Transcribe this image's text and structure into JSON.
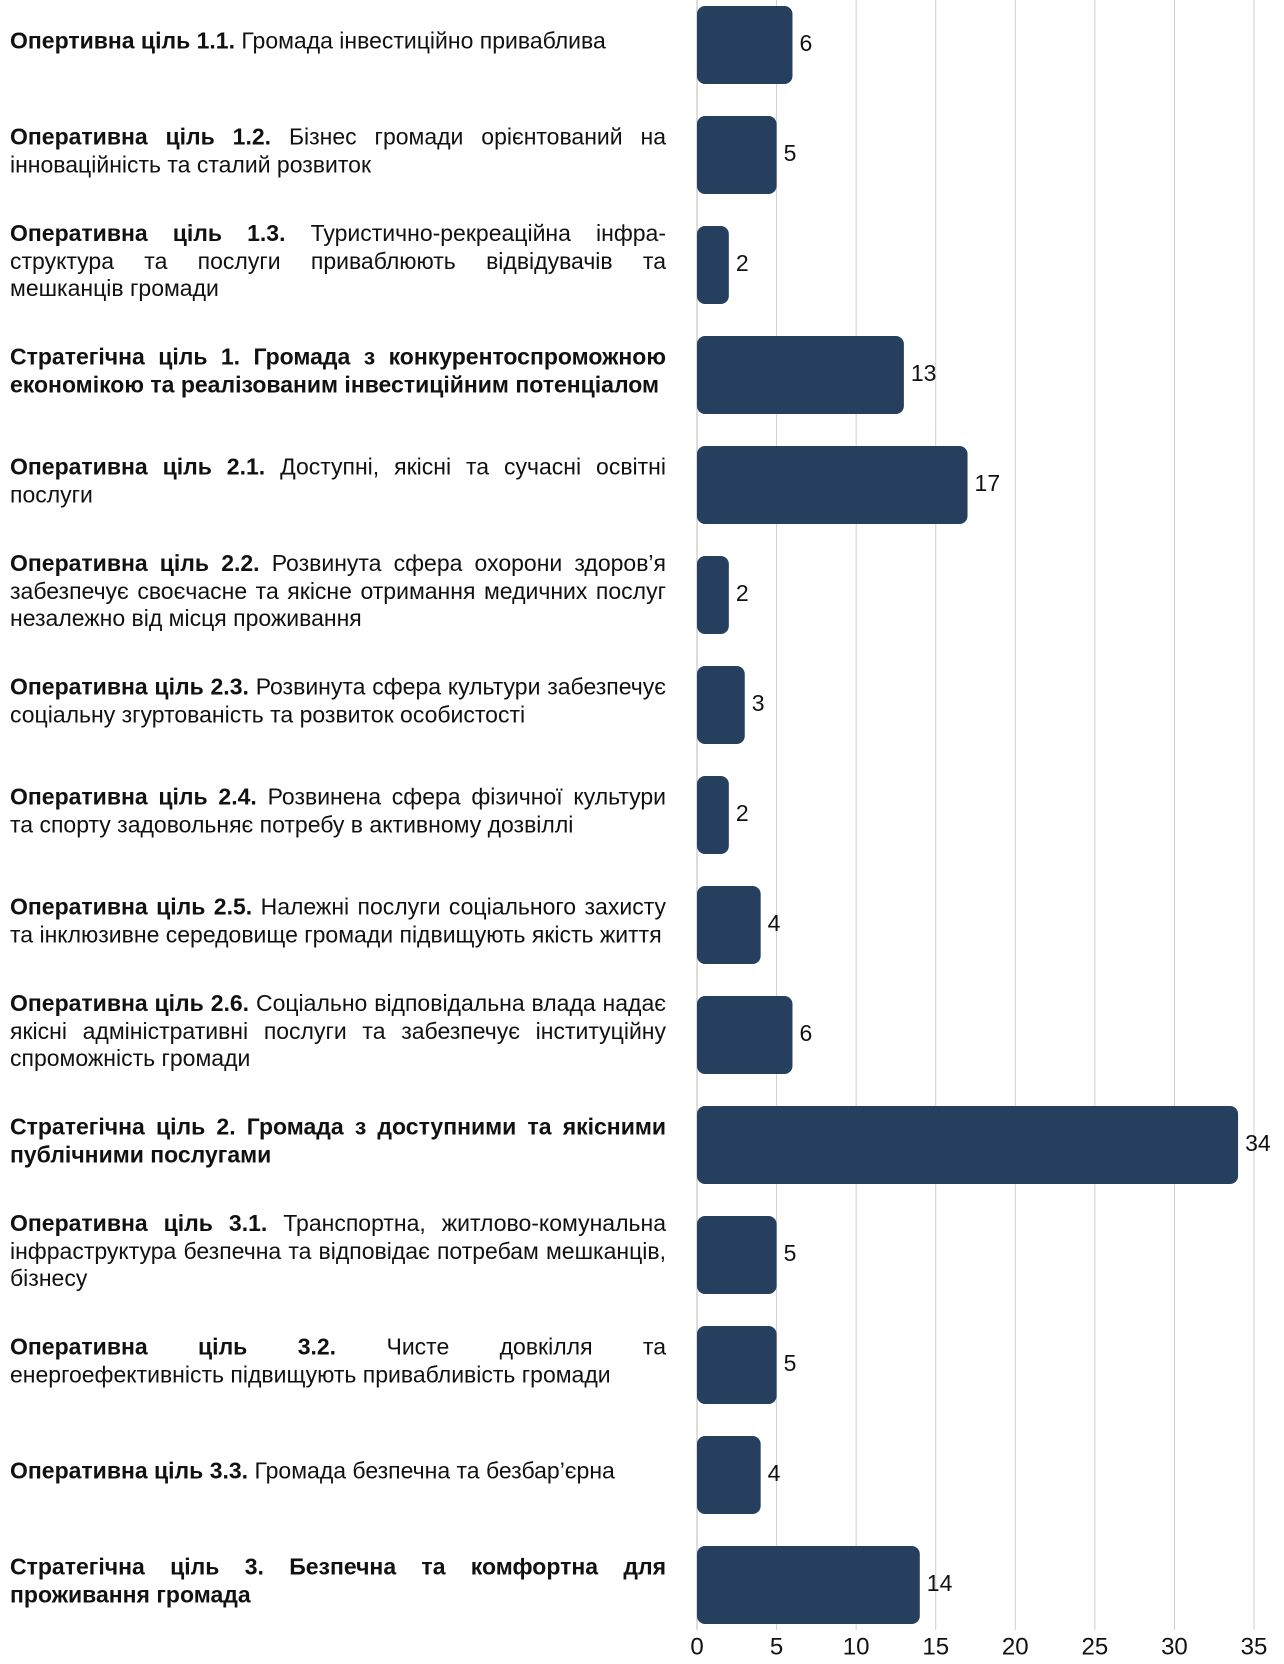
{
  "chart_data": {
    "type": "bar",
    "orientation": "horizontal",
    "categories": [
      {
        "label": "Опертивна ціль 1.1.",
        "text": "Громада інвестиційно приваблива"
      },
      {
        "label": "Оперативна ціль 1.2.",
        "text": "Бізнес громади орієнтований на інноваційність та сталий розвиток"
      },
      {
        "label": "Оперативна ціль 1.3.",
        "text": "Туристично-рекреаційна інфра-структура та послуги приваблюють відвідувачів та мешканців громади"
      },
      {
        "label": "Стратегічна ціль 1. Громада з конкурентоспроможною економікою та реалізованим інвестиційним потенціалом"
      },
      {
        "label": "Оперативна ціль 2.1.",
        "text": "Доступні, якісні та сучасні освітні послуги"
      },
      {
        "label": "Оперативна ціль 2.2.",
        "text": "Розвинута сфера охорони здоров’я забезпечує своєчасне та якісне отримання медичних послуг незалежно від місця проживання"
      },
      {
        "label": "Оперативна ціль 2.3.",
        "text": "Розвинута сфера культури забезпечує соціальну згуртованість та розвиток особистості"
      },
      {
        "label": "Оперативна ціль 2.4.",
        "text": "Розвинена сфера фізичної культури та спорту задовольняє потребу в активному дозвіллі"
      },
      {
        "label": "Оперативна ціль 2.5.",
        "text": "Належні послуги соціального захисту та інклюзивне середовище громади підвищують якість життя"
      },
      {
        "label": "Оперативна ціль 2.6.",
        "text": "Соціально відповідальна влада надає якісні адміністративні послуги та забезпечує інституційну спроможність громади"
      },
      {
        "label": "Стратегічна ціль 2. Громада з доступними та якісними публічними послугами"
      },
      {
        "label": "Оперативна ціль 3.1.",
        "text": "Транспортна, житлово-комунальна інфраструктура безпечна та відповідає потребам мешканців, бізнесу"
      },
      {
        "label": "Оперативна ціль 3.2.",
        "text": "Чисте довкілля та енергоефективність підвищують привабливість громади"
      },
      {
        "label": "Оперативна ціль 3.3.",
        "text": "Громада безпечна та безбар’єрна"
      },
      {
        "label": "Стратегічна ціль 3. Безпечна та комфортна для проживання громада"
      }
    ],
    "values": [
      6,
      5,
      2,
      13,
      17,
      2,
      3,
      2,
      4,
      6,
      34,
      5,
      5,
      4,
      14
    ],
    "color": "#263f5f",
    "xlim": [
      0,
      35
    ],
    "xticks": [
      0,
      5,
      10,
      15,
      20,
      25,
      30,
      35
    ],
    "grid": true
  }
}
